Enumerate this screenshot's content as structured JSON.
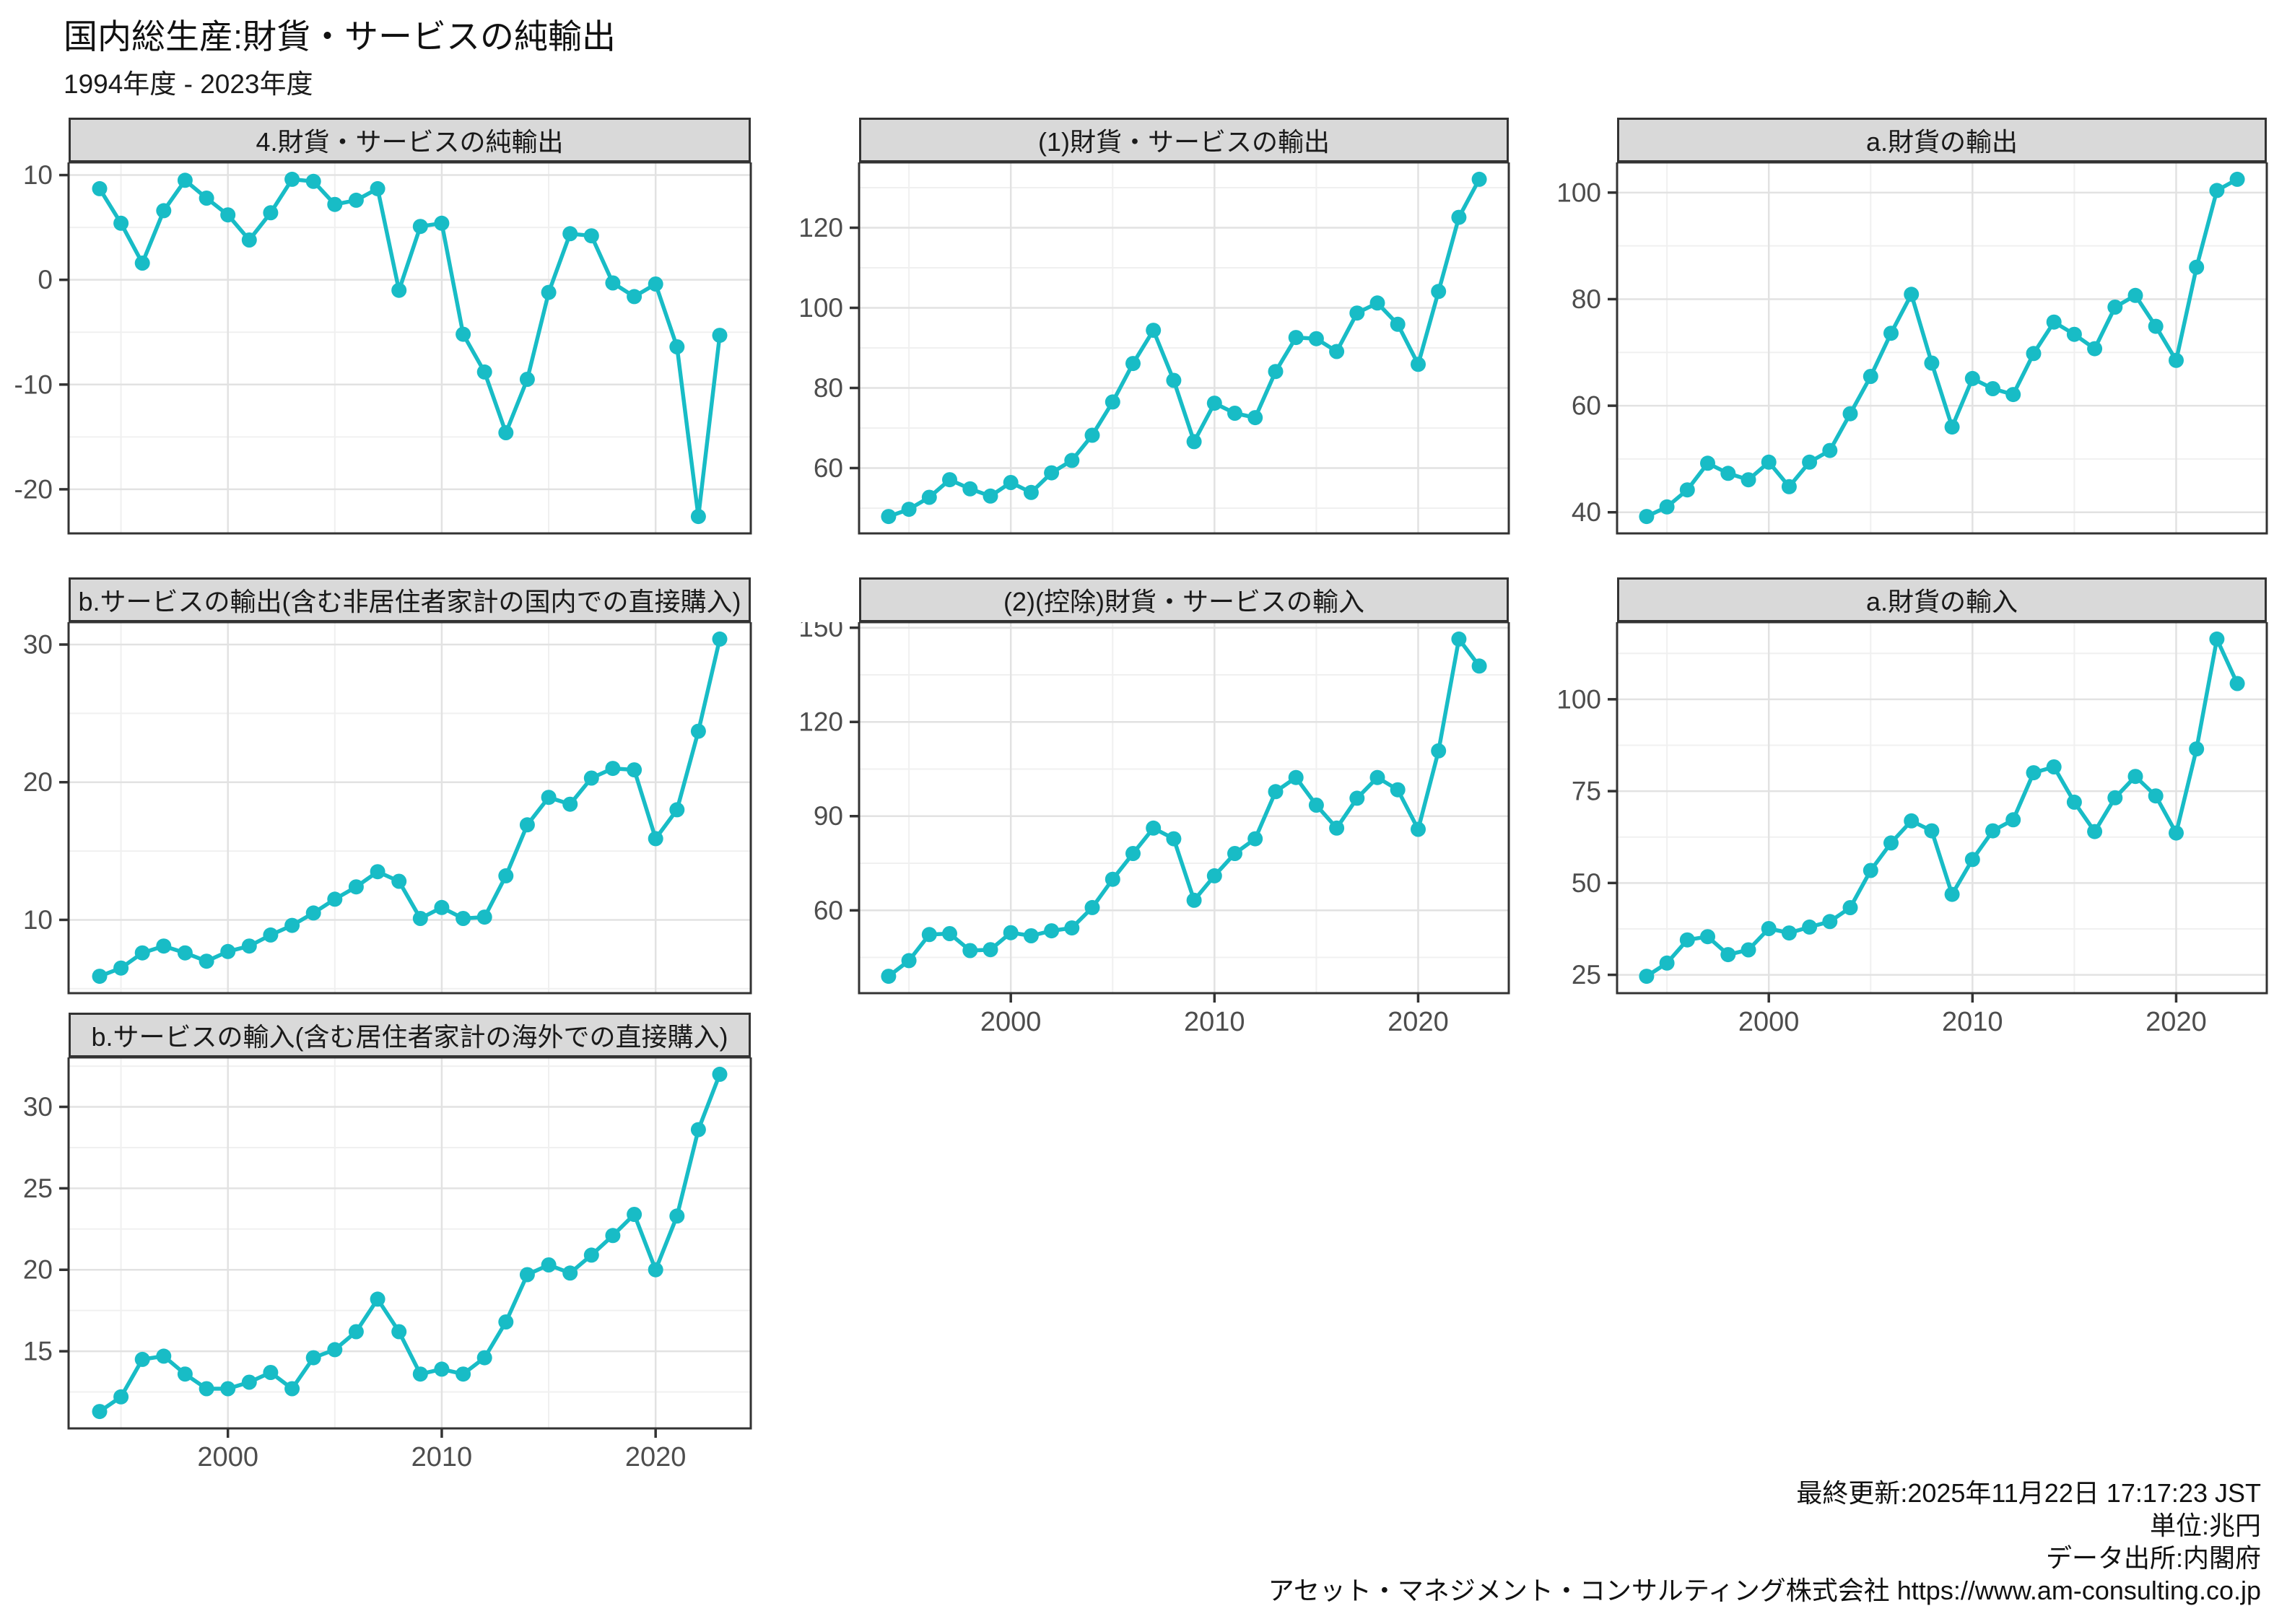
{
  "header": {
    "title": "国内総生産:財貨・サービスの純輸出",
    "subtitle": "1994年度 - 2023年度"
  },
  "footer": {
    "updated": "最終更新:2025年11月22日 17:17:23 JST",
    "unit": "単位:兆円",
    "source": "データ出所:内閣府",
    "company": "アセット・マネジメント・コンサルティング株式会社 https://www.am-consulting.co.jp"
  },
  "colors": {
    "series": "#18bcc6",
    "strip_bg": "#d9d9d9",
    "strip_text": "#1a1a1a",
    "panel_border": "#333333",
    "grid_major": "#e2e2e2",
    "grid_minor": "#f0f0f0",
    "axis_text": "#4d4d4d",
    "tick_mark": "#333333",
    "panel_bg": "#ffffff"
  },
  "axis_x": {
    "ticks": [
      2000,
      2010,
      2020
    ],
    "minor": [
      1995,
      2005,
      2015
    ],
    "domain": [
      1992.55,
      2024.45
    ]
  },
  "years": [
    1994,
    1995,
    1996,
    1997,
    1998,
    1999,
    2000,
    2001,
    2002,
    2003,
    2004,
    2005,
    2006,
    2007,
    2008,
    2009,
    2010,
    2011,
    2012,
    2013,
    2014,
    2015,
    2016,
    2017,
    2018,
    2019,
    2020,
    2021,
    2022,
    2023
  ],
  "chart_data": [
    {
      "id": "net-exports",
      "type": "line",
      "title": "4.財貨・サービスの純輸出",
      "y_ticks": [
        10,
        0,
        -10,
        -20
      ],
      "y_minor": [
        5,
        -5,
        -15
      ],
      "x_axis": false,
      "values": [
        8.7,
        5.4,
        1.6,
        6.6,
        9.5,
        7.8,
        6.2,
        3.8,
        6.4,
        9.6,
        9.4,
        7.2,
        7.6,
        8.7,
        -1.0,
        5.1,
        5.4,
        -5.2,
        -8.8,
        -14.6,
        -9.5,
        -1.2,
        4.4,
        4.2,
        -0.3,
        -1.6,
        -0.4,
        -6.4,
        -22.6,
        -5.3
      ]
    },
    {
      "id": "exports-goods-services",
      "type": "line",
      "title": "(1)財貨・サービスの輸出",
      "y_ticks": [
        120,
        100,
        80,
        60
      ],
      "y_minor": [
        130,
        110,
        90,
        70,
        50
      ],
      "x_axis": false,
      "values": [
        47.9,
        49.7,
        52.7,
        57.1,
        54.8,
        53.0,
        56.4,
        53.9,
        58.8,
        61.9,
        68.2,
        76.5,
        86.1,
        94.4,
        81.9,
        66.6,
        76.2,
        73.7,
        72.6,
        84.1,
        92.6,
        92.3,
        89.1,
        98.7,
        101.2,
        95.9,
        85.9,
        104.1,
        122.6,
        132.1
      ]
    },
    {
      "id": "exports-goods",
      "type": "line",
      "title": "a.財貨の輸出",
      "y_ticks": [
        100,
        80,
        60,
        40
      ],
      "y_minor": [
        90,
        70,
        50
      ],
      "x_axis": false,
      "values": [
        39.2,
        41.0,
        44.2,
        49.2,
        47.3,
        46.1,
        49.4,
        44.8,
        49.4,
        51.6,
        58.5,
        65.5,
        73.6,
        80.9,
        68.0,
        56.0,
        65.1,
        63.2,
        62.1,
        69.8,
        75.7,
        73.4,
        70.7,
        78.5,
        80.7,
        74.9,
        68.5,
        86.0,
        100.4,
        102.5
      ]
    },
    {
      "id": "exports-services",
      "type": "line",
      "title": "b.サービスの輸出(含む非居住者家計の国内での直接購入)",
      "y_ticks": [
        30,
        20,
        10
      ],
      "y_minor": [
        25,
        15,
        5
      ],
      "x_axis": false,
      "values": [
        5.9,
        6.5,
        7.6,
        8.1,
        7.6,
        7.0,
        7.7,
        8.1,
        8.9,
        9.6,
        10.5,
        11.5,
        12.4,
        13.5,
        12.8,
        10.1,
        10.9,
        10.1,
        10.2,
        13.2,
        16.9,
        18.9,
        18.4,
        20.3,
        21.0,
        20.9,
        15.9,
        18.0,
        23.7,
        30.4
      ]
    },
    {
      "id": "imports-goods-services",
      "type": "line",
      "title": "(2)(控除)財貨・サービスの輸入",
      "y_ticks": [
        150,
        120,
        90,
        60
      ],
      "y_minor": [
        135,
        105,
        75,
        45
      ],
      "x_axis": true,
      "values": [
        39.0,
        44.0,
        52.3,
        52.6,
        47.2,
        47.5,
        52.9,
        51.9,
        53.5,
        54.4,
        60.9,
        69.9,
        78.1,
        86.2,
        82.8,
        63.2,
        71.0,
        78.1,
        82.8,
        97.8,
        102.3,
        93.5,
        86.2,
        95.7,
        102.3,
        98.4,
        85.8,
        110.8,
        146.4,
        137.8
      ]
    },
    {
      "id": "imports-goods",
      "type": "line",
      "title": "a.財貨の輸入",
      "y_ticks": [
        100,
        75,
        50,
        25
      ],
      "y_minor": [
        112.5,
        87.5,
        62.5,
        37.5
      ],
      "x_axis": true,
      "values": [
        24.6,
        28.2,
        34.5,
        35.4,
        30.5,
        31.8,
        37.6,
        36.4,
        38.0,
        39.5,
        43.3,
        53.4,
        60.9,
        66.9,
        64.2,
        46.9,
        56.4,
        64.2,
        67.2,
        80.0,
        81.6,
        72.0,
        64.0,
        73.2,
        79.0,
        73.7,
        63.6,
        86.5,
        116.4,
        104.3
      ]
    },
    {
      "id": "imports-services",
      "type": "line",
      "title": "b.サービスの輸入(含む居住者家計の海外での直接購入)",
      "y_ticks": [
        30,
        25,
        20,
        15
      ],
      "y_minor": [
        32.5,
        27.5,
        22.5,
        17.5,
        12.5
      ],
      "x_axis": true,
      "values": [
        11.3,
        12.2,
        14.5,
        14.7,
        13.6,
        12.7,
        12.7,
        13.1,
        13.7,
        12.7,
        14.6,
        15.1,
        16.2,
        18.2,
        16.2,
        13.6,
        13.9,
        13.6,
        14.6,
        16.8,
        19.7,
        20.3,
        19.8,
        20.9,
        22.1,
        23.4,
        20.0,
        23.3,
        28.6,
        32.0
      ]
    }
  ]
}
